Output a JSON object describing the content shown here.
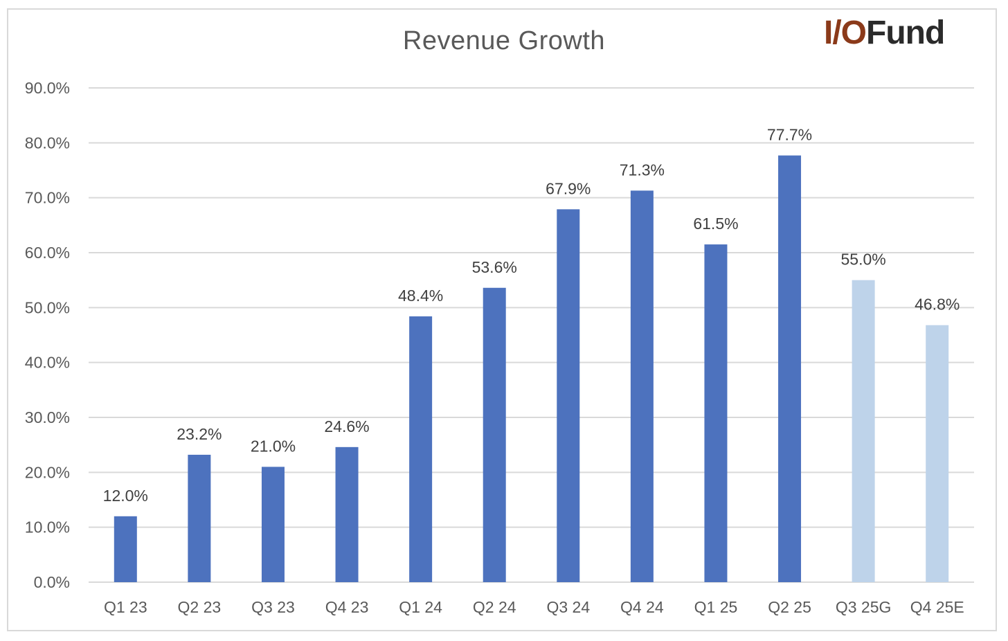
{
  "logo": {
    "part1": "I/O",
    "part2": "Fund"
  },
  "colors": {
    "actual": "#4d72be",
    "forecast": "#bed3ea",
    "grid": "#d9d9d9",
    "axis_text": "#595959"
  },
  "chart_data": {
    "type": "bar",
    "title": "Revenue Growth",
    "xlabel": "",
    "ylabel": "",
    "categories": [
      "Q1 23",
      "Q2 23",
      "Q3 23",
      "Q4 23",
      "Q1 24",
      "Q2 24",
      "Q3 24",
      "Q4 24",
      "Q1 25",
      "Q2 25",
      "Q3 25G",
      "Q4 25E"
    ],
    "values": [
      12.0,
      23.2,
      21.0,
      24.6,
      48.4,
      53.6,
      67.9,
      71.3,
      61.5,
      77.7,
      55.0,
      46.8
    ],
    "data_labels": [
      "12.0%",
      "23.2%",
      "21.0%",
      "24.6%",
      "48.4%",
      "53.6%",
      "67.9%",
      "71.3%",
      "61.5%",
      "77.7%",
      "55.0%",
      "46.8%"
    ],
    "series_kind": [
      "actual",
      "actual",
      "actual",
      "actual",
      "actual",
      "actual",
      "actual",
      "actual",
      "actual",
      "actual",
      "forecast",
      "forecast"
    ],
    "ylim": [
      0,
      90
    ],
    "yticks": [
      0,
      10,
      20,
      30,
      40,
      50,
      60,
      70,
      80,
      90
    ],
    "ytick_labels": [
      "0.0%",
      "10.0%",
      "20.0%",
      "30.0%",
      "40.0%",
      "50.0%",
      "60.0%",
      "70.0%",
      "80.0%",
      "90.0%"
    ],
    "grid": true,
    "legend": "none"
  }
}
